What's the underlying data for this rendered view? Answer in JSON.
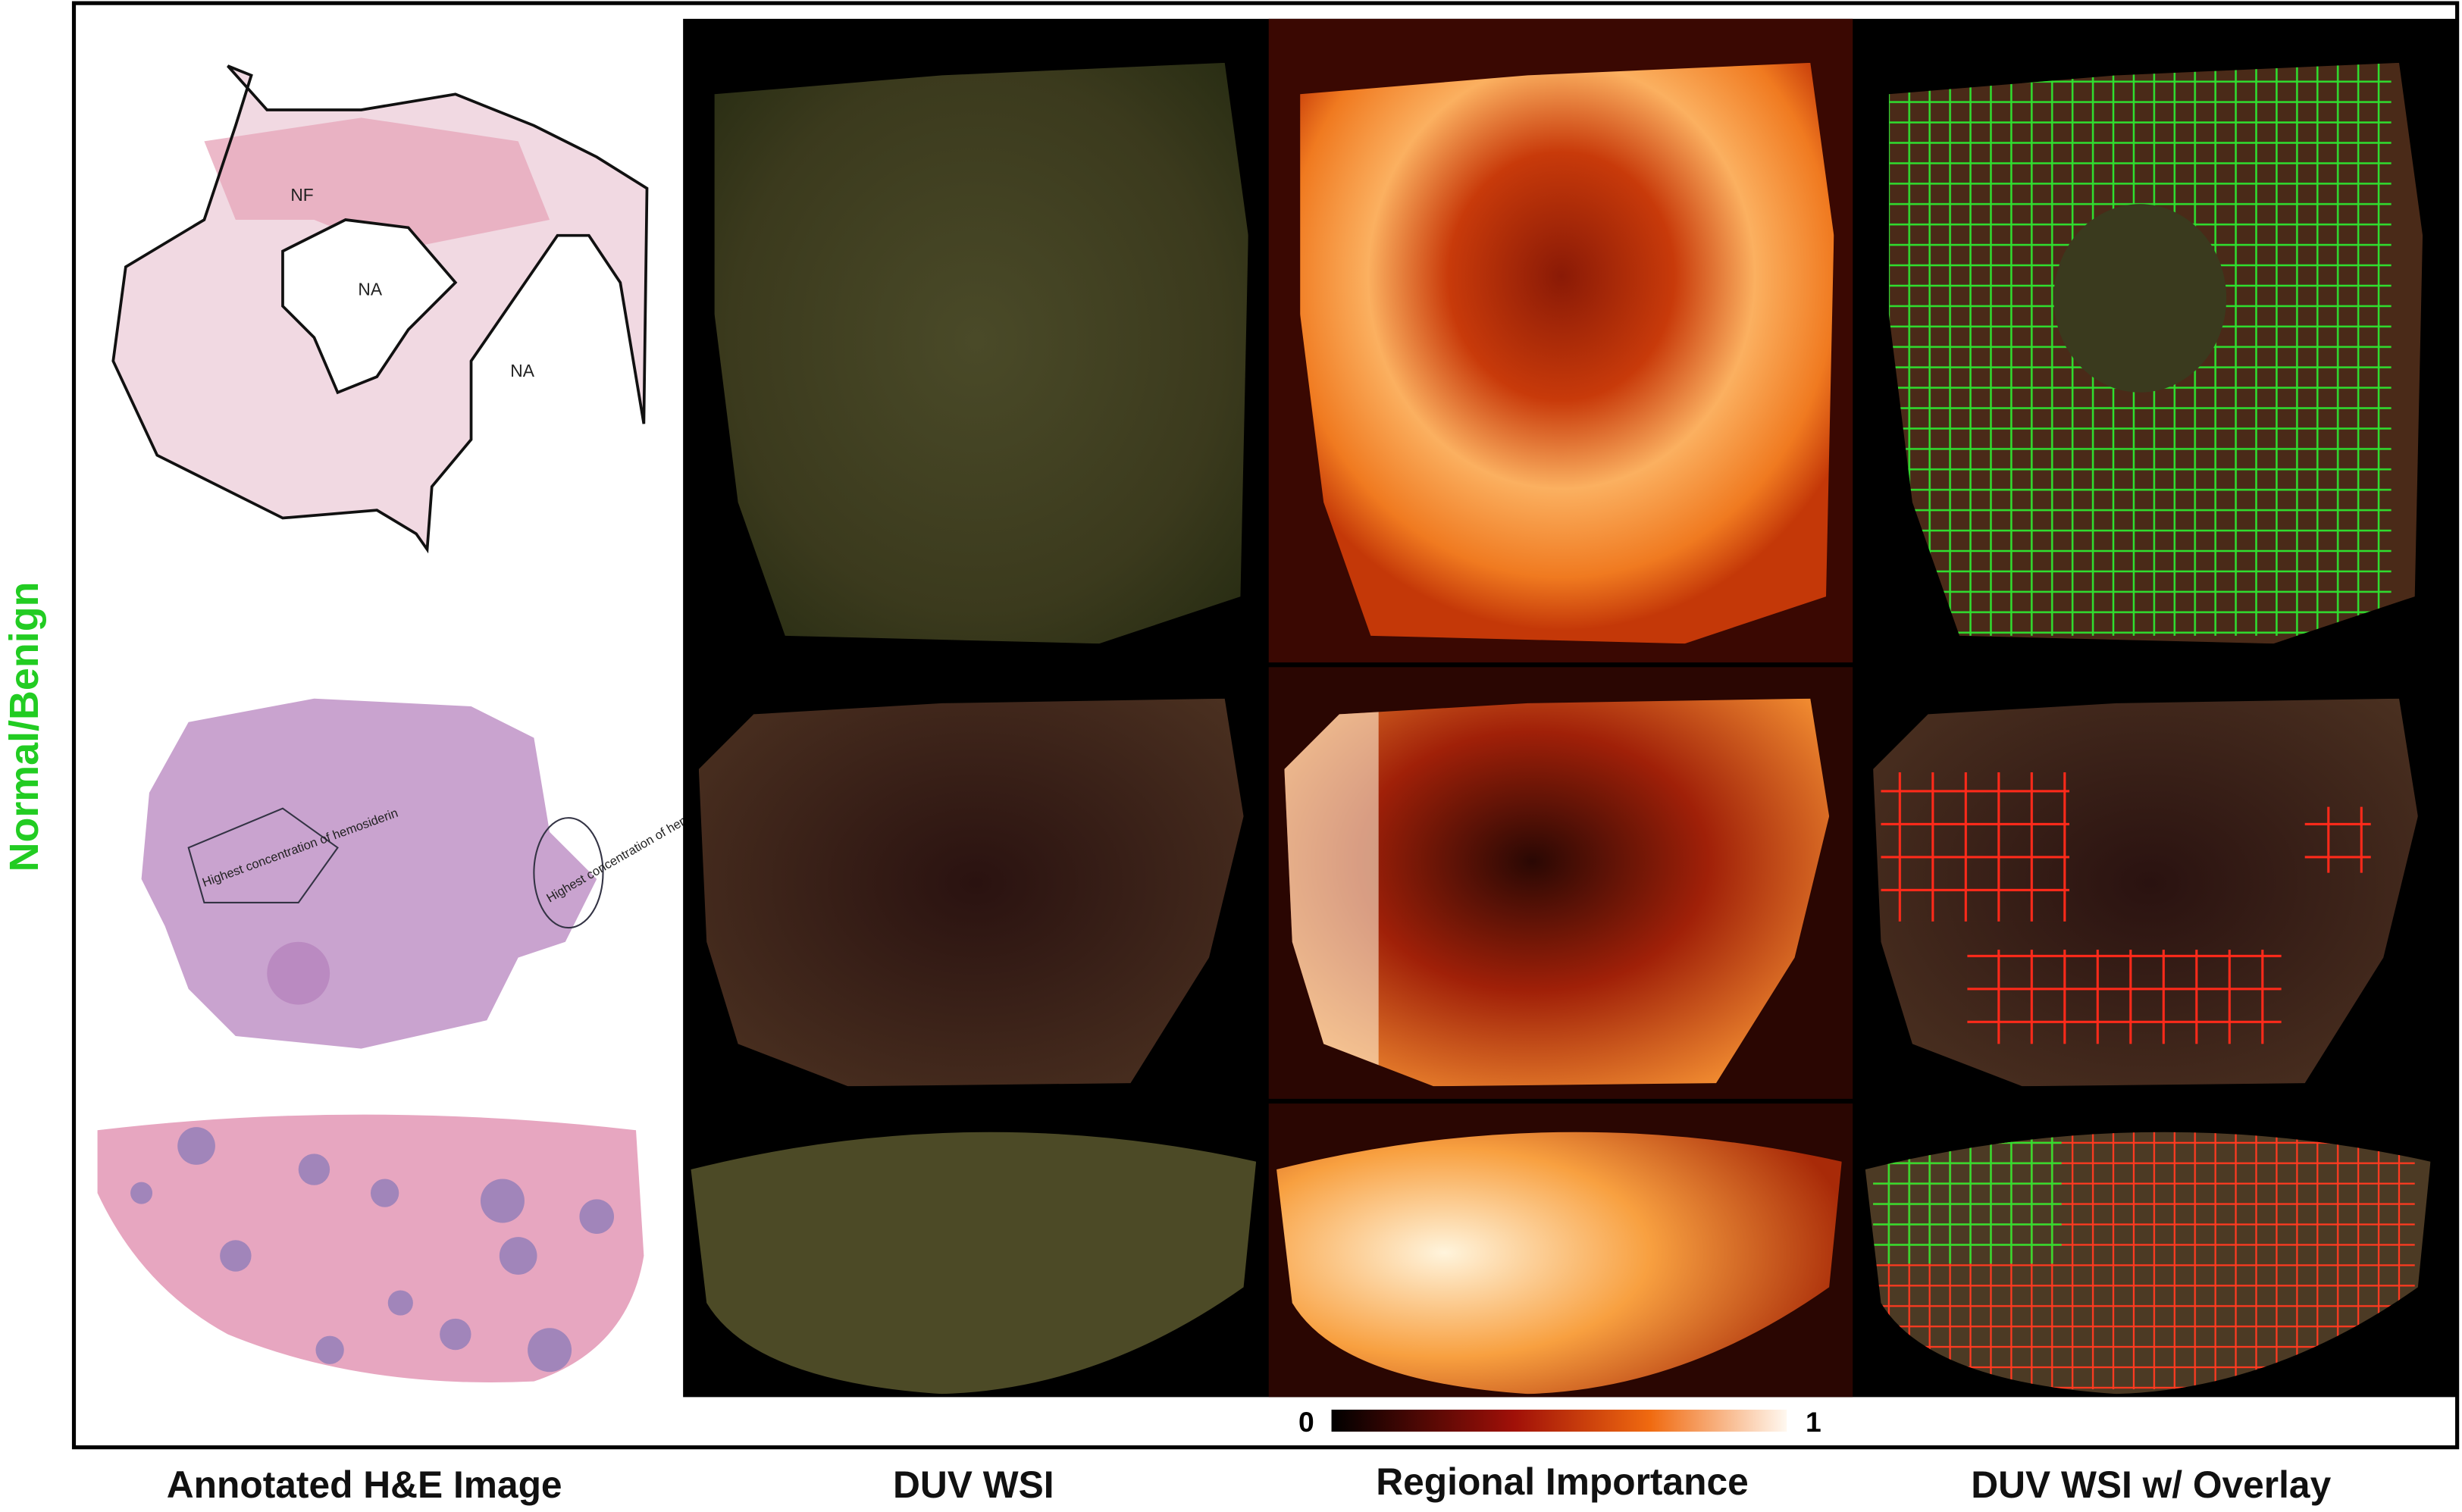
{
  "side_label": "Normal/Benign",
  "annotations": {
    "top": [
      "NF",
      "NA",
      "NA"
    ],
    "middle": [
      "Highest concentration of hemosiderin",
      "Highest concentration of hemosiderin"
    ]
  },
  "colorbar": {
    "ticks": [
      0,
      1
    ]
  },
  "columns": [
    "Annotated H&E Image",
    "DUV WSI",
    "Regional Importance",
    "DUV WSI w/ Overlay"
  ]
}
